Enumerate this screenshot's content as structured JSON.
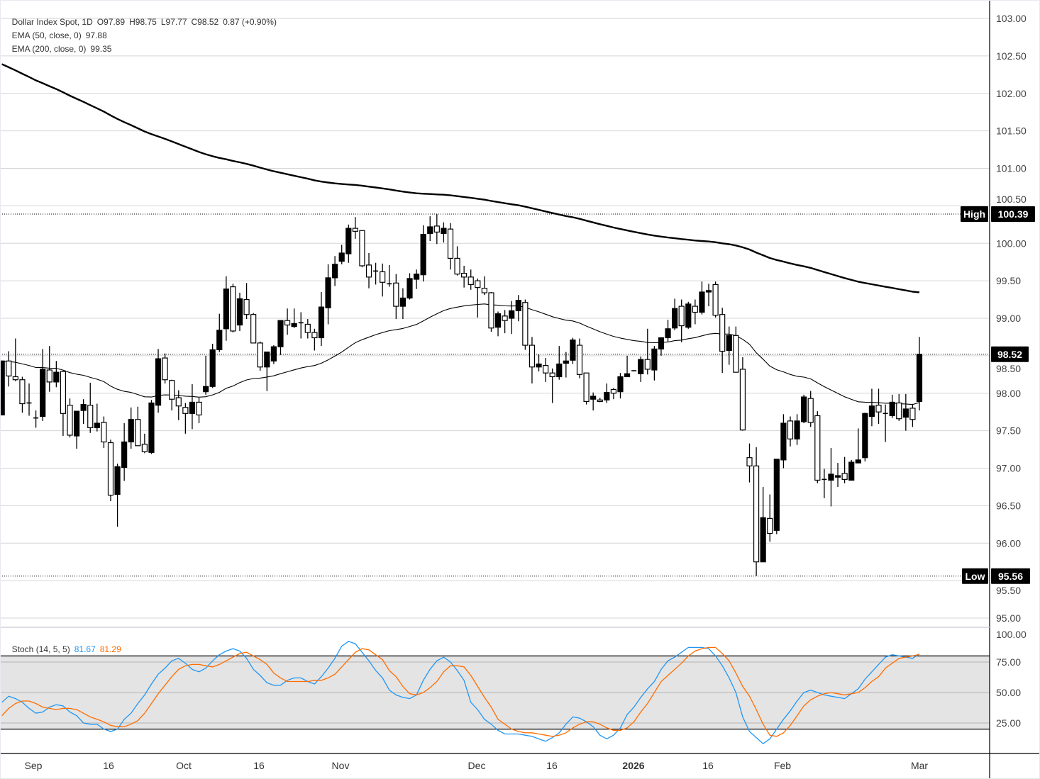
{
  "header": {
    "symbol": "Dollar Index Spot, 1D",
    "open": "O97.89",
    "high": "H98.75",
    "low": "L97.77",
    "close": "C98.52",
    "change": "0.87 (+0.90%)",
    "ema50_label": "EMA (50, close, 0)",
    "ema50_value": "97.88",
    "ema200_label": "EMA (200, close, 0)",
    "ema200_value": "99.35"
  },
  "stoch_legend": {
    "label": "Stoch (14, 5, 5)",
    "k_value": "81.67",
    "d_value": "81.29"
  },
  "markers": {
    "high_label": "High",
    "high_value": "100.39",
    "high": 100.39,
    "low_label": "Low",
    "low_value": "95.56",
    "low": 95.56,
    "last_value": "98.52",
    "last": 98.52
  },
  "colors": {
    "up_body": "#000000",
    "down_body": "#ffffff",
    "ema": "#000000",
    "stoch_k": "#2196f3",
    "stoch_d": "#ff6d00",
    "band": "#e4e4e4"
  },
  "chart_data": {
    "type": "candlestick",
    "price_axis": {
      "ylim": [
        95.0,
        103.0
      ],
      "ticks": [
        "103.00",
        "102.50",
        "102.00",
        "101.50",
        "101.00",
        "100.50",
        "100.00",
        "99.50",
        "99.00",
        "98.50",
        "98.00",
        "97.50",
        "97.00",
        "96.50",
        "96.00",
        "95.50",
        "95.00"
      ],
      "grid": true
    },
    "x_ticks": [
      "Sep",
      "16",
      "Oct",
      "16",
      "Nov",
      "Dec",
      "16",
      "2026",
      "16",
      "Feb",
      "Mar"
    ],
    "candles_ohlc": [
      [
        97.71,
        98.43,
        97.71,
        98.43
      ],
      [
        98.43,
        98.56,
        98.09,
        98.23
      ],
      [
        98.22,
        98.73,
        98.16,
        98.18
      ],
      [
        98.18,
        98.22,
        97.74,
        97.86
      ],
      [
        97.87,
        98.13,
        97.7,
        97.86
      ],
      [
        97.67,
        97.77,
        97.54,
        97.67
      ],
      [
        97.69,
        98.59,
        97.63,
        98.32
      ],
      [
        98.31,
        98.63,
        98.02,
        98.15
      ],
      [
        98.15,
        98.43,
        98.08,
        98.28
      ],
      [
        98.29,
        98.3,
        97.43,
        97.73
      ],
      [
        97.84,
        97.93,
        97.41,
        97.44
      ],
      [
        97.43,
        97.76,
        97.26,
        97.76
      ],
      [
        97.77,
        97.92,
        97.59,
        97.85
      ],
      [
        97.84,
        98.14,
        97.47,
        97.54
      ],
      [
        97.54,
        97.86,
        97.49,
        97.6
      ],
      [
        97.61,
        97.69,
        97.27,
        97.35
      ],
      [
        97.34,
        97.38,
        96.56,
        96.64
      ],
      [
        96.65,
        97.06,
        96.22,
        97.02
      ],
      [
        97.01,
        97.6,
        96.83,
        97.35
      ],
      [
        97.35,
        97.81,
        97.26,
        97.65
      ],
      [
        97.65,
        97.82,
        97.3,
        97.3
      ],
      [
        97.32,
        97.46,
        97.2,
        97.22
      ],
      [
        97.21,
        97.91,
        97.19,
        97.87
      ],
      [
        97.84,
        98.59,
        97.74,
        98.46
      ],
      [
        98.47,
        98.53,
        98.13,
        98.18
      ],
      [
        98.17,
        98.18,
        97.77,
        97.92
      ],
      [
        97.94,
        98.04,
        97.64,
        97.83
      ],
      [
        97.81,
        97.87,
        97.46,
        97.73
      ],
      [
        97.73,
        98.12,
        97.52,
        97.88
      ],
      [
        97.88,
        97.94,
        97.6,
        97.71
      ],
      [
        98.02,
        98.5,
        97.98,
        98.09
      ],
      [
        98.09,
        98.66,
        98.07,
        98.58
      ],
      [
        98.58,
        99.06,
        98.55,
        98.84
      ],
      [
        98.86,
        99.56,
        98.7,
        99.39
      ],
      [
        99.42,
        99.46,
        98.81,
        98.83
      ],
      [
        98.91,
        99.34,
        98.83,
        99.26
      ],
      [
        99.25,
        99.47,
        98.99,
        99.05
      ],
      [
        99.05,
        99.07,
        98.67,
        98.67
      ],
      [
        98.67,
        98.69,
        98.3,
        98.35
      ],
      [
        98.35,
        98.55,
        98.03,
        98.55
      ],
      [
        98.43,
        98.64,
        98.39,
        98.62
      ],
      [
        98.62,
        98.97,
        98.51,
        98.97
      ],
      [
        98.97,
        99.13,
        98.78,
        98.91
      ],
      [
        98.89,
        99.13,
        98.87,
        98.93
      ],
      [
        98.94,
        99.08,
        98.73,
        98.94
      ],
      [
        98.92,
        98.99,
        98.73,
        98.81
      ],
      [
        98.81,
        98.86,
        98.57,
        98.74
      ],
      [
        98.74,
        99.35,
        98.63,
        99.15
      ],
      [
        99.14,
        99.72,
        98.92,
        99.54
      ],
      [
        99.54,
        99.83,
        99.43,
        99.72
      ],
      [
        99.76,
        99.98,
        99.72,
        99.87
      ],
      [
        99.86,
        100.25,
        99.74,
        100.2
      ],
      [
        100.2,
        100.35,
        100.06,
        100.16
      ],
      [
        100.17,
        100.17,
        99.68,
        99.7
      ],
      [
        99.71,
        99.87,
        99.4,
        99.55
      ],
      [
        99.63,
        99.74,
        99.45,
        99.63
      ],
      [
        99.62,
        99.73,
        99.29,
        99.48
      ],
      [
        99.46,
        99.71,
        99.42,
        99.46
      ],
      [
        99.47,
        99.59,
        98.99,
        99.16
      ],
      [
        99.16,
        99.4,
        98.99,
        99.27
      ],
      [
        99.27,
        99.6,
        99.25,
        99.53
      ],
      [
        99.52,
        99.65,
        99.39,
        99.59
      ],
      [
        99.58,
        100.24,
        99.49,
        100.12
      ],
      [
        100.13,
        100.36,
        100.03,
        100.22
      ],
      [
        100.23,
        100.39,
        99.99,
        100.15
      ],
      [
        100.13,
        100.28,
        100.01,
        100.2
      ],
      [
        100.19,
        100.27,
        99.65,
        99.8
      ],
      [
        99.8,
        99.96,
        99.57,
        99.59
      ],
      [
        99.6,
        99.7,
        99.41,
        99.55
      ],
      [
        99.55,
        99.65,
        99.38,
        99.45
      ],
      [
        99.5,
        99.53,
        99.01,
        99.41
      ],
      [
        99.4,
        99.56,
        99.31,
        99.34
      ],
      [
        99.34,
        99.35,
        98.82,
        98.87
      ],
      [
        98.88,
        99.09,
        98.76,
        99.06
      ],
      [
        99.03,
        99.11,
        98.8,
        98.97
      ],
      [
        99.0,
        99.23,
        98.79,
        99.1
      ],
      [
        99.1,
        99.31,
        98.96,
        99.24
      ],
      [
        99.21,
        99.25,
        98.58,
        98.64
      ],
      [
        98.64,
        98.75,
        98.13,
        98.35
      ],
      [
        98.35,
        98.52,
        98.29,
        98.39
      ],
      [
        98.37,
        98.47,
        98.15,
        98.27
      ],
      [
        98.27,
        98.33,
        97.87,
        98.22
      ],
      [
        98.22,
        98.63,
        98.18,
        98.39
      ],
      [
        98.4,
        98.55,
        98.21,
        98.43
      ],
      [
        98.44,
        98.74,
        98.39,
        98.71
      ],
      [
        98.64,
        98.73,
        98.2,
        98.25
      ],
      [
        98.27,
        98.27,
        97.85,
        97.89
      ],
      [
        97.92,
        98.01,
        97.77,
        97.96
      ],
      [
        97.91,
        97.94,
        97.88,
        97.89
      ],
      [
        97.91,
        98.13,
        97.87,
        98.01
      ],
      [
        98.05,
        98.07,
        97.92,
        98.0
      ],
      [
        98.02,
        98.27,
        97.93,
        98.22
      ],
      [
        98.22,
        98.5,
        98.22,
        98.26
      ],
      [
        98.3,
        98.3,
        98.3,
        98.3
      ],
      [
        98.26,
        98.49,
        98.15,
        98.45
      ],
      [
        98.45,
        98.86,
        98.25,
        98.32
      ],
      [
        98.31,
        98.63,
        98.17,
        98.59
      ],
      [
        98.59,
        98.74,
        98.5,
        98.74
      ],
      [
        98.74,
        98.98,
        98.68,
        98.86
      ],
      [
        98.87,
        99.26,
        98.84,
        99.13
      ],
      [
        99.16,
        99.25,
        98.68,
        98.9
      ],
      [
        98.88,
        99.22,
        98.86,
        99.19
      ],
      [
        99.16,
        99.25,
        98.92,
        99.08
      ],
      [
        99.08,
        99.49,
        99.05,
        99.35
      ],
      [
        99.35,
        99.46,
        99.16,
        99.37
      ],
      [
        99.45,
        99.49,
        99.01,
        99.04
      ],
      [
        99.05,
        99.14,
        98.27,
        98.56
      ],
      [
        98.57,
        98.89,
        98.38,
        98.77
      ],
      [
        98.77,
        98.89,
        98.28,
        98.28
      ],
      [
        98.32,
        98.48,
        97.5,
        97.51
      ],
      [
        97.14,
        97.33,
        96.81,
        97.03
      ],
      [
        97.03,
        97.28,
        95.56,
        95.75
      ],
      [
        95.75,
        96.75,
        95.75,
        96.34
      ],
      [
        96.33,
        96.65,
        96.02,
        96.13
      ],
      [
        96.17,
        97.12,
        96.12,
        97.12
      ],
      [
        97.11,
        97.72,
        97.0,
        97.6
      ],
      [
        97.63,
        97.69,
        97.29,
        97.39
      ],
      [
        97.39,
        97.72,
        97.31,
        97.63
      ],
      [
        97.62,
        97.98,
        97.6,
        97.95
      ],
      [
        97.93,
        98.03,
        97.55,
        97.61
      ],
      [
        97.7,
        97.76,
        96.8,
        96.84
      ],
      [
        96.85,
        96.99,
        96.6,
        96.85
      ],
      [
        96.84,
        97.27,
        96.49,
        96.92
      ],
      [
        96.88,
        97.07,
        96.75,
        96.9
      ],
      [
        96.93,
        97.15,
        96.8,
        96.85
      ],
      [
        96.84,
        97.11,
        96.84,
        97.08
      ],
      [
        97.07,
        97.53,
        97.07,
        97.11
      ],
      [
        97.14,
        97.74,
        97.09,
        97.73
      ],
      [
        97.69,
        98.06,
        97.56,
        97.83
      ],
      [
        97.84,
        98.06,
        97.59,
        97.75
      ],
      [
        97.73,
        97.85,
        97.35,
        97.73
      ],
      [
        97.7,
        97.98,
        97.67,
        97.88
      ],
      [
        97.87,
        97.99,
        97.63,
        97.66
      ],
      [
        97.68,
        97.99,
        97.5,
        97.79
      ],
      [
        97.8,
        97.85,
        97.55,
        97.65
      ],
      [
        97.89,
        98.75,
        97.77,
        98.52
      ]
    ],
    "ema50": {
      "name": "EMA (50, close, 0)",
      "period": 50,
      "first": 98.43,
      "last": 97.88
    },
    "ema200": {
      "name": "EMA (200, close, 0)",
      "period": 200,
      "first": 102.39,
      "last": 99.35
    },
    "stoch": {
      "name": "Stoch (14, 5, 5)",
      "ylim": [
        0,
        100
      ],
      "ticks": [
        "100.00",
        "75.00",
        "50.00",
        "25.00"
      ],
      "band": [
        20,
        80
      ],
      "k": [
        42,
        47,
        45,
        42,
        37,
        33,
        34,
        38,
        40,
        39,
        34,
        31,
        25,
        24,
        24,
        20,
        18,
        20,
        28,
        33,
        41,
        48,
        57,
        65,
        70,
        76,
        78,
        74,
        69,
        67,
        70,
        76,
        81,
        84,
        86,
        84,
        78,
        69,
        64,
        58,
        56,
        56,
        60,
        62,
        62,
        59,
        57,
        63,
        70,
        78,
        88,
        92,
        90,
        83,
        76,
        68,
        62,
        52,
        48,
        46,
        45,
        48,
        60,
        69,
        76,
        79,
        75,
        68,
        60,
        42,
        36,
        28,
        24,
        19,
        16,
        16,
        16,
        15,
        14,
        12,
        10,
        13,
        17,
        24,
        30,
        29,
        26,
        22,
        15,
        12,
        15,
        21,
        32,
        38,
        46,
        53,
        59,
        69,
        76,
        79,
        83,
        87,
        87,
        87,
        86,
        80,
        72,
        62,
        50,
        30,
        18,
        13,
        8,
        12,
        20,
        28,
        35,
        43,
        50,
        52,
        50,
        48,
        47,
        46,
        45,
        49,
        53,
        61,
        67,
        73,
        79,
        81,
        80,
        79,
        78,
        81.67
      ],
      "d": [
        31,
        37,
        41,
        43,
        43,
        41,
        38,
        37,
        36,
        37,
        37,
        36,
        33,
        30,
        28,
        26,
        23,
        22,
        22,
        24,
        27,
        33,
        41,
        49,
        56,
        63,
        69,
        72,
        73,
        73,
        72,
        71,
        73,
        76,
        79,
        82,
        83,
        80,
        77,
        73,
        66,
        62,
        59,
        59,
        59,
        59,
        60,
        60,
        62,
        65,
        71,
        77,
        83,
        86,
        85,
        81,
        77,
        68,
        63,
        55,
        49,
        48,
        50,
        54,
        59,
        67,
        72,
        72,
        71,
        64,
        55,
        46,
        38,
        28,
        24,
        20,
        18,
        17,
        17,
        16,
        15,
        14,
        15,
        17,
        21,
        24,
        26,
        26,
        24,
        21,
        19,
        19,
        21,
        26,
        34,
        41,
        50,
        59,
        64,
        69,
        74,
        80,
        84,
        86,
        87,
        87,
        82,
        76,
        66,
        55,
        47,
        36,
        24,
        15,
        14,
        17,
        23,
        31,
        39,
        44,
        47,
        49,
        50,
        49,
        48,
        49,
        50,
        54,
        59,
        63,
        70,
        74,
        78,
        79,
        80,
        81.29
      ]
    }
  }
}
